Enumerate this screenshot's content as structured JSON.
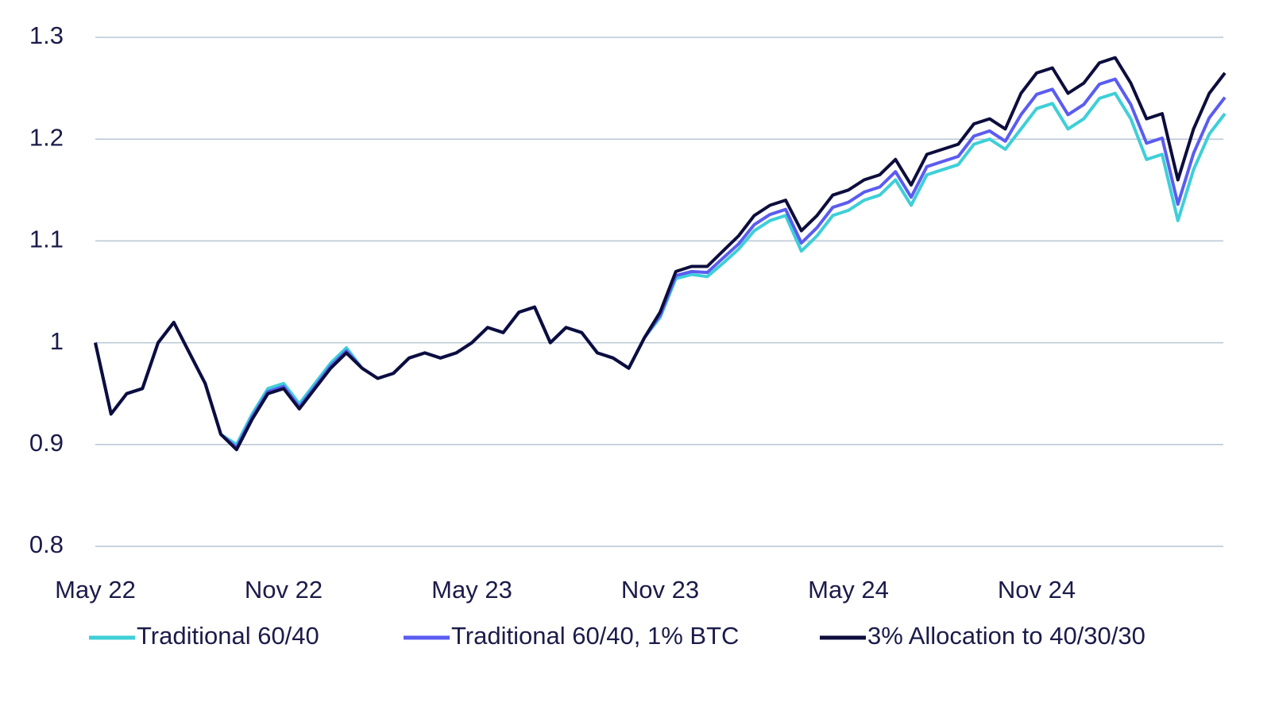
{
  "chart_data": {
    "type": "line",
    "categories": [
      "May 22",
      null,
      null,
      null,
      null,
      null,
      null,
      null,
      null,
      null,
      null,
      null,
      "Nov 22",
      null,
      null,
      null,
      null,
      null,
      null,
      null,
      null,
      null,
      null,
      null,
      "May 23",
      null,
      null,
      null,
      null,
      null,
      null,
      null,
      null,
      null,
      null,
      null,
      "Nov 23",
      null,
      null,
      null,
      null,
      null,
      null,
      null,
      null,
      null,
      null,
      null,
      "May 24",
      null,
      null,
      null,
      null,
      null,
      null,
      null,
      null,
      null,
      null,
      null,
      "Nov 24",
      null,
      null,
      null,
      null,
      null,
      null,
      null,
      null,
      null,
      null,
      null,
      null
    ],
    "series": [
      {
        "name": "Traditional 60/40",
        "color": "#3ecfd8",
        "values": [
          1.0,
          0.93,
          0.95,
          0.955,
          1.0,
          1.02,
          0.99,
          0.96,
          0.91,
          0.9,
          0.93,
          0.955,
          0.96,
          0.94,
          0.96,
          0.98,
          0.995,
          0.975,
          0.965,
          0.97,
          0.985,
          0.99,
          0.985,
          0.99,
          1.0,
          1.015,
          1.01,
          1.03,
          1.035,
          1.0,
          1.015,
          1.01,
          0.99,
          0.985,
          0.975,
          1.005,
          1.025,
          1.063,
          1.067,
          1.065,
          1.078,
          1.092,
          1.11,
          1.12,
          1.125,
          1.09,
          1.105,
          1.125,
          1.13,
          1.14,
          1.145,
          1.16,
          1.135,
          1.165,
          1.17,
          1.175,
          1.195,
          1.2,
          1.19,
          1.21,
          1.23,
          1.235,
          1.21,
          1.22,
          1.24,
          1.245,
          1.22,
          1.18,
          1.185,
          1.12,
          1.17,
          1.205,
          1.225
        ]
      },
      {
        "name": "Traditional 60/40, 1% BTC",
        "color": "#5a5cf0",
        "values": [
          1.0,
          0.93,
          0.95,
          0.955,
          1.0,
          1.02,
          0.99,
          0.96,
          0.91,
          0.897,
          0.927,
          0.952,
          0.957,
          0.937,
          0.957,
          0.977,
          0.992,
          0.975,
          0.965,
          0.97,
          0.985,
          0.99,
          0.985,
          0.99,
          1.0,
          1.015,
          1.01,
          1.03,
          1.035,
          1.0,
          1.015,
          1.01,
          0.99,
          0.985,
          0.975,
          1.005,
          1.027,
          1.066,
          1.07,
          1.069,
          1.083,
          1.097,
          1.116,
          1.126,
          1.131,
          1.098,
          1.113,
          1.133,
          1.138,
          1.148,
          1.153,
          1.168,
          1.143,
          1.173,
          1.178,
          1.183,
          1.203,
          1.208,
          1.198,
          1.224,
          1.244,
          1.249,
          1.224,
          1.234,
          1.254,
          1.259,
          1.234,
          1.196,
          1.201,
          1.136,
          1.186,
          1.221,
          1.241
        ]
      },
      {
        "name": "3% Allocation to 40/30/30",
        "color": "#0d0d3d",
        "values": [
          1.0,
          0.93,
          0.95,
          0.955,
          1.0,
          1.02,
          0.99,
          0.96,
          0.91,
          0.895,
          0.925,
          0.95,
          0.955,
          0.935,
          0.955,
          0.975,
          0.99,
          0.975,
          0.965,
          0.97,
          0.985,
          0.99,
          0.985,
          0.99,
          1.0,
          1.015,
          1.01,
          1.03,
          1.035,
          1.0,
          1.015,
          1.01,
          0.99,
          0.985,
          0.975,
          1.005,
          1.03,
          1.07,
          1.075,
          1.075,
          1.09,
          1.105,
          1.125,
          1.135,
          1.14,
          1.11,
          1.125,
          1.145,
          1.15,
          1.16,
          1.165,
          1.18,
          1.155,
          1.185,
          1.19,
          1.195,
          1.215,
          1.22,
          1.21,
          1.245,
          1.265,
          1.27,
          1.245,
          1.255,
          1.275,
          1.28,
          1.255,
          1.22,
          1.225,
          1.16,
          1.21,
          1.245,
          1.265
        ]
      }
    ],
    "ylim": [
      0.8,
      1.3
    ],
    "yticks": [
      0.8,
      0.9,
      1,
      1.1,
      1.2,
      1.3
    ],
    "grid": true,
    "legend": "bottom"
  }
}
